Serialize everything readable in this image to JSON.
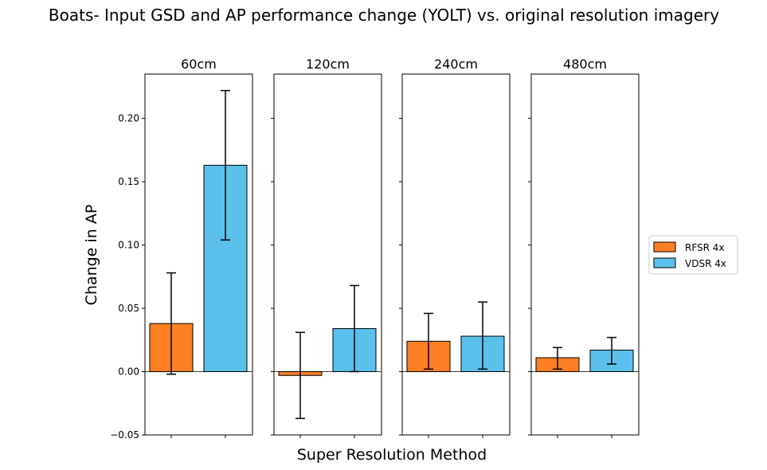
{
  "chart_data": {
    "type": "bar",
    "title": "Boats- Input GSD and AP performance change (YOLT) vs. original resolution imagery",
    "xlabel": "Super Resolution Method",
    "ylabel": "Change in AP",
    "ylim": [
      -0.05,
      0.235
    ],
    "yticks": [
      -0.05,
      0.0,
      0.05,
      0.1,
      0.15,
      0.2
    ],
    "ytick_labels": [
      "−0.05",
      "0.00",
      "0.05",
      "0.10",
      "0.15",
      "0.20"
    ],
    "legend_position": "center-right",
    "colors": {
      "RFSR 4x": "#ff7f24",
      "VDSR 4x": "#5bc0eb"
    },
    "series_names": [
      "RFSR 4x",
      "VDSR 4x"
    ],
    "panels": [
      {
        "title": "60cm",
        "bars": [
          {
            "series": "RFSR 4x",
            "value": 0.038,
            "err_low": -0.002,
            "err_high": 0.078
          },
          {
            "series": "VDSR 4x",
            "value": 0.163,
            "err_low": 0.104,
            "err_high": 0.222
          }
        ]
      },
      {
        "title": "120cm",
        "bars": [
          {
            "series": "RFSR 4x",
            "value": -0.003,
            "err_low": -0.037,
            "err_high": 0.031
          },
          {
            "series": "VDSR 4x",
            "value": 0.034,
            "err_low": 0.0,
            "err_high": 0.068
          }
        ]
      },
      {
        "title": "240cm",
        "bars": [
          {
            "series": "RFSR 4x",
            "value": 0.024,
            "err_low": 0.002,
            "err_high": 0.046
          },
          {
            "series": "VDSR 4x",
            "value": 0.028,
            "err_low": 0.002,
            "err_high": 0.055
          }
        ]
      },
      {
        "title": "480cm",
        "bars": [
          {
            "series": "RFSR 4x",
            "value": 0.011,
            "err_low": 0.002,
            "err_high": 0.019
          },
          {
            "series": "VDSR 4x",
            "value": 0.017,
            "err_low": 0.006,
            "err_high": 0.027
          }
        ]
      }
    ]
  }
}
